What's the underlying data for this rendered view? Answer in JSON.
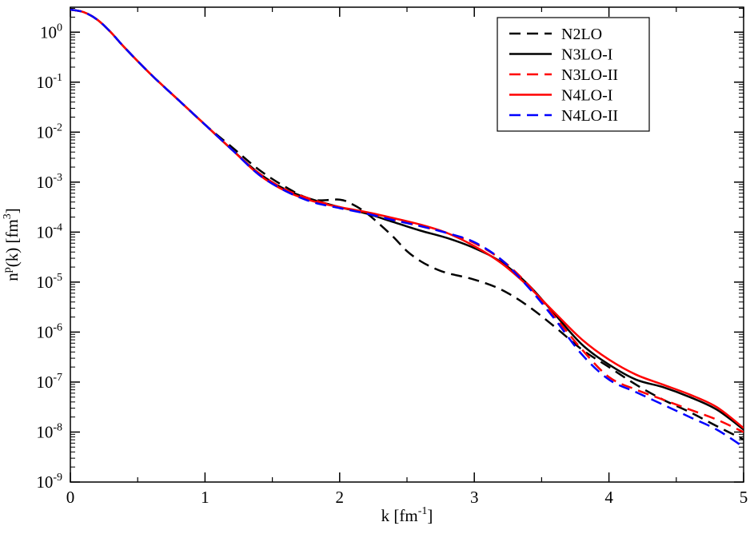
{
  "chart_data": {
    "type": "line",
    "xlabel": "k [fm^-1]",
    "ylabel": "n^p(k) [fm^3]",
    "xlim": [
      0,
      5
    ],
    "ylim_exponent": [
      -9,
      0.5
    ],
    "y_scale": "log",
    "grid": false,
    "legend_position": "top-right",
    "x_ticks": [
      {
        "value": 0,
        "label": "0"
      },
      {
        "value": 1,
        "label": "1"
      },
      {
        "value": 2,
        "label": "2"
      },
      {
        "value": 3,
        "label": "3"
      },
      {
        "value": 4,
        "label": "4"
      },
      {
        "value": 5,
        "label": "5"
      }
    ],
    "y_ticks": [
      {
        "exp": 0,
        "label": "10",
        "sup": "0"
      },
      {
        "exp": -1,
        "label": "10",
        "sup": "-1"
      },
      {
        "exp": -2,
        "label": "10",
        "sup": "-2"
      },
      {
        "exp": -3,
        "label": "10",
        "sup": "-3"
      },
      {
        "exp": -4,
        "label": "10",
        "sup": "-4"
      },
      {
        "exp": -5,
        "label": "10",
        "sup": "-5"
      },
      {
        "exp": -6,
        "label": "10",
        "sup": "-6"
      },
      {
        "exp": -7,
        "label": "10",
        "sup": "-7"
      },
      {
        "exp": -8,
        "label": "10",
        "sup": "-8"
      },
      {
        "exp": -9,
        "label": "10",
        "sup": "-9"
      }
    ],
    "series": [
      {
        "name": "N2LO",
        "color": "#000000",
        "dashed": true,
        "points": [
          [
            0,
            0.45
          ],
          [
            0.1,
            0.4
          ],
          [
            0.2,
            0.25
          ],
          [
            0.3,
            0.0
          ],
          [
            0.4,
            -0.3
          ],
          [
            0.6,
            -0.85
          ],
          [
            0.8,
            -1.35
          ],
          [
            1.0,
            -1.85
          ],
          [
            1.2,
            -2.3
          ],
          [
            1.4,
            -2.75
          ],
          [
            1.6,
            -3.1
          ],
          [
            1.8,
            -3.35
          ],
          [
            2.0,
            -3.35
          ],
          [
            2.1,
            -3.45
          ],
          [
            2.2,
            -3.62
          ],
          [
            2.3,
            -3.85
          ],
          [
            2.4,
            -4.1
          ],
          [
            2.5,
            -4.38
          ],
          [
            2.6,
            -4.58
          ],
          [
            2.7,
            -4.72
          ],
          [
            2.8,
            -4.82
          ],
          [
            3.0,
            -4.95
          ],
          [
            3.2,
            -5.15
          ],
          [
            3.4,
            -5.48
          ],
          [
            3.6,
            -5.9
          ],
          [
            3.8,
            -6.35
          ],
          [
            4.0,
            -6.7
          ],
          [
            4.2,
            -7.05
          ],
          [
            4.4,
            -7.35
          ],
          [
            4.6,
            -7.6
          ],
          [
            4.8,
            -7.88
          ],
          [
            5.0,
            -8.15
          ]
        ]
      },
      {
        "name": "N3LO-I",
        "color": "#000000",
        "dashed": false,
        "points": [
          [
            0,
            0.45
          ],
          [
            0.1,
            0.4
          ],
          [
            0.2,
            0.25
          ],
          [
            0.3,
            0.0
          ],
          [
            0.4,
            -0.3
          ],
          [
            0.6,
            -0.85
          ],
          [
            0.8,
            -1.35
          ],
          [
            1.0,
            -1.85
          ],
          [
            1.2,
            -2.35
          ],
          [
            1.4,
            -2.82
          ],
          [
            1.6,
            -3.15
          ],
          [
            1.8,
            -3.35
          ],
          [
            2.0,
            -3.5
          ],
          [
            2.2,
            -3.63
          ],
          [
            2.4,
            -3.8
          ],
          [
            2.6,
            -3.97
          ],
          [
            2.8,
            -4.12
          ],
          [
            3.0,
            -4.32
          ],
          [
            3.2,
            -4.6
          ],
          [
            3.4,
            -5.05
          ],
          [
            3.6,
            -5.65
          ],
          [
            3.8,
            -6.25
          ],
          [
            4.0,
            -6.65
          ],
          [
            4.2,
            -6.95
          ],
          [
            4.4,
            -7.1
          ],
          [
            4.6,
            -7.3
          ],
          [
            4.8,
            -7.55
          ],
          [
            5.0,
            -7.95
          ]
        ]
      },
      {
        "name": "N3LO-II",
        "color": "#ff0000",
        "dashed": true,
        "points": [
          [
            0,
            0.45
          ],
          [
            0.1,
            0.4
          ],
          [
            0.2,
            0.25
          ],
          [
            0.3,
            0.0
          ],
          [
            0.4,
            -0.3
          ],
          [
            0.6,
            -0.85
          ],
          [
            0.8,
            -1.35
          ],
          [
            1.0,
            -1.85
          ],
          [
            1.2,
            -2.35
          ],
          [
            1.4,
            -2.82
          ],
          [
            1.6,
            -3.15
          ],
          [
            1.8,
            -3.35
          ],
          [
            2.0,
            -3.5
          ],
          [
            2.2,
            -3.62
          ],
          [
            2.4,
            -3.75
          ],
          [
            2.6,
            -3.88
          ],
          [
            2.8,
            -4.02
          ],
          [
            3.0,
            -4.22
          ],
          [
            3.2,
            -4.55
          ],
          [
            3.4,
            -5.05
          ],
          [
            3.6,
            -5.7
          ],
          [
            3.8,
            -6.35
          ],
          [
            4.0,
            -6.9
          ],
          [
            4.2,
            -7.15
          ],
          [
            4.4,
            -7.35
          ],
          [
            4.6,
            -7.55
          ],
          [
            4.8,
            -7.75
          ],
          [
            5.0,
            -8.0
          ]
        ]
      },
      {
        "name": "N4LO-I",
        "color": "#ff0000",
        "dashed": false,
        "points": [
          [
            0,
            0.45
          ],
          [
            0.1,
            0.4
          ],
          [
            0.2,
            0.25
          ],
          [
            0.3,
            0.0
          ],
          [
            0.4,
            -0.3
          ],
          [
            0.6,
            -0.85
          ],
          [
            0.8,
            -1.35
          ],
          [
            1.0,
            -1.85
          ],
          [
            1.2,
            -2.35
          ],
          [
            1.4,
            -2.85
          ],
          [
            1.6,
            -3.18
          ],
          [
            1.8,
            -3.38
          ],
          [
            2.0,
            -3.5
          ],
          [
            2.2,
            -3.6
          ],
          [
            2.4,
            -3.72
          ],
          [
            2.6,
            -3.85
          ],
          [
            2.8,
            -4.02
          ],
          [
            3.0,
            -4.28
          ],
          [
            3.2,
            -4.62
          ],
          [
            3.4,
            -5.08
          ],
          [
            3.6,
            -5.62
          ],
          [
            3.8,
            -6.15
          ],
          [
            4.0,
            -6.55
          ],
          [
            4.2,
            -6.85
          ],
          [
            4.4,
            -7.05
          ],
          [
            4.6,
            -7.25
          ],
          [
            4.8,
            -7.5
          ],
          [
            5.0,
            -7.92
          ]
        ]
      },
      {
        "name": "N4LO-II",
        "color": "#0000ff",
        "dashed": true,
        "points": [
          [
            0,
            0.45
          ],
          [
            0.1,
            0.4
          ],
          [
            0.2,
            0.25
          ],
          [
            0.3,
            0.0
          ],
          [
            0.4,
            -0.3
          ],
          [
            0.6,
            -0.85
          ],
          [
            0.8,
            -1.35
          ],
          [
            1.0,
            -1.85
          ],
          [
            1.2,
            -2.35
          ],
          [
            1.4,
            -2.85
          ],
          [
            1.6,
            -3.18
          ],
          [
            1.8,
            -3.4
          ],
          [
            2.0,
            -3.52
          ],
          [
            2.2,
            -3.63
          ],
          [
            2.4,
            -3.76
          ],
          [
            2.6,
            -3.88
          ],
          [
            2.8,
            -4.02
          ],
          [
            3.0,
            -4.2
          ],
          [
            3.2,
            -4.55
          ],
          [
            3.4,
            -5.1
          ],
          [
            3.6,
            -5.75
          ],
          [
            3.8,
            -6.45
          ],
          [
            4.0,
            -6.95
          ],
          [
            4.2,
            -7.2
          ],
          [
            4.4,
            -7.45
          ],
          [
            4.6,
            -7.7
          ],
          [
            4.8,
            -7.95
          ],
          [
            5.0,
            -8.3
          ]
        ]
      }
    ]
  }
}
